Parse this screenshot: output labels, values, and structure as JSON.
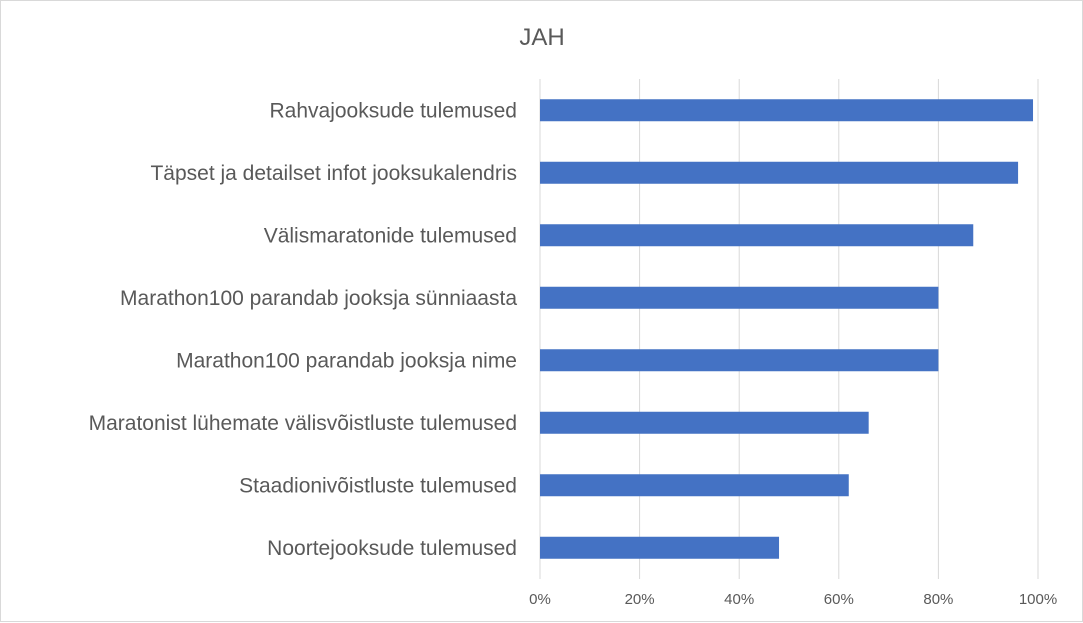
{
  "chart_data": {
    "type": "bar",
    "orientation": "horizontal",
    "title": "JAH",
    "categories": [
      "Rahvajooksude tulemused",
      "Täpset ja detailset infot jooksukalendris",
      "Välismaratonide tulemused",
      "Marathon100 parandab jooksja sünniaasta",
      "Marathon100 parandab jooksja nime",
      "Maratonist lühemate välisvõistluste tulemused",
      "Staadionivõistluste tulemused",
      "Noortejooksude tulemused"
    ],
    "values": [
      99,
      96,
      87,
      80,
      80,
      66,
      62,
      48
    ],
    "xlim": [
      0,
      100
    ],
    "xticks": [
      "0%",
      "20%",
      "40%",
      "60%",
      "80%",
      "100%"
    ],
    "grid": true,
    "legend": "none",
    "bar_color": "#4472c4"
  }
}
